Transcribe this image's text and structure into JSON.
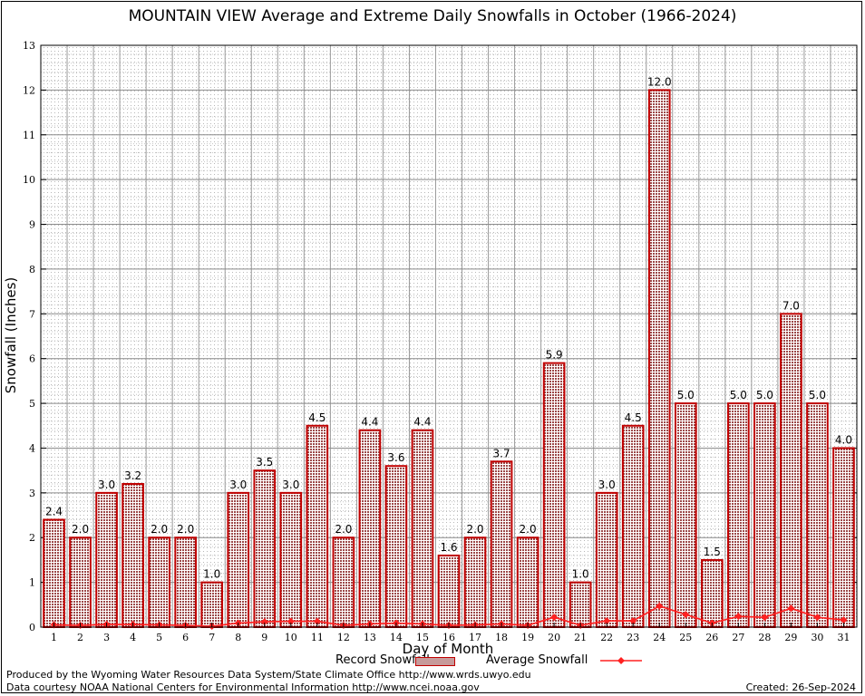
{
  "chart_data": {
    "type": "bar",
    "title": "MOUNTAIN VIEW Average and Extreme Daily Snowfalls in October (1966-2024)",
    "xlabel": "Day of Month",
    "ylabel": "Snowfall (Inches)",
    "ylim": [
      0,
      13
    ],
    "yticks": [
      "0",
      "1",
      "2",
      "3",
      "4",
      "5",
      "6",
      "7",
      "8",
      "9",
      "10",
      "11",
      "12",
      "13"
    ],
    "categories": [
      "1",
      "2",
      "3",
      "4",
      "5",
      "6",
      "7",
      "8",
      "9",
      "10",
      "11",
      "12",
      "13",
      "14",
      "15",
      "16",
      "17",
      "18",
      "19",
      "20",
      "21",
      "22",
      "23",
      "24",
      "25",
      "26",
      "27",
      "28",
      "29",
      "30",
      "31"
    ],
    "series": [
      {
        "name": "Record Snowfall",
        "type": "bar",
        "color": "#c00000",
        "values": [
          2.4,
          2.0,
          3.0,
          3.2,
          2.0,
          2.0,
          1.0,
          3.0,
          3.5,
          3.0,
          4.5,
          2.0,
          4.4,
          3.6,
          4.4,
          1.6,
          2.0,
          3.7,
          2.0,
          5.9,
          1.0,
          3.0,
          4.5,
          12.0,
          5.0,
          1.5,
          5.0,
          5.0,
          7.0,
          5.0,
          4.0
        ],
        "labels": [
          "2.4",
          "2.0",
          "3.0",
          "3.2",
          "2.0",
          "2.0",
          "1.0",
          "3.0",
          "3.5",
          "3.0",
          "4.5",
          "2.0",
          "4.4",
          "3.6",
          "4.4",
          "1.6",
          "2.0",
          "3.7",
          "2.0",
          "5.9",
          "1.0",
          "3.0",
          "4.5",
          "12.0",
          "5.0",
          "1.5",
          "5.0",
          "5.0",
          "7.0",
          "5.0",
          "4.0"
        ]
      },
      {
        "name": "Average Snowfall",
        "type": "line",
        "color": "#ff2020",
        "values": [
          0.05,
          0.04,
          0.06,
          0.06,
          0.05,
          0.04,
          0.02,
          0.09,
          0.12,
          0.13,
          0.13,
          0.04,
          0.07,
          0.09,
          0.07,
          0.04,
          0.05,
          0.07,
          0.04,
          0.22,
          0.04,
          0.14,
          0.14,
          0.47,
          0.28,
          0.09,
          0.24,
          0.22,
          0.42,
          0.22,
          0.16
        ]
      }
    ],
    "grid": true,
    "legend_position": "bottom"
  },
  "footer": {
    "credit_line1": "Produced by the Wyoming Water Resources Data System/State Climate Office http://www.wrds.uwyo.edu",
    "credit_line2": "Data courtesy NOAA National Centers for Environmental Information http://www.ncei.noaa.gov",
    "created": "Created:  26-Sep-2024"
  }
}
